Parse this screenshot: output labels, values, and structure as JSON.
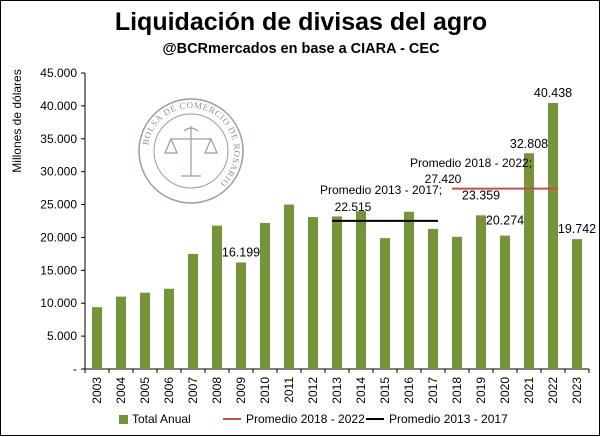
{
  "chart_data": {
    "type": "bar",
    "title": "Liquidación de divisas del agro",
    "subtitle": "@BCRmercados en base a CIARA - CEC",
    "ylabel": "Millones de dólares",
    "xlabel": "",
    "ylim": [
      0,
      45000
    ],
    "yticks": [
      "-",
      "5.000",
      "10.000",
      "15.000",
      "20.000",
      "25.000",
      "30.000",
      "35.000",
      "40.000",
      "45.000"
    ],
    "categories": [
      "2003",
      "2004",
      "2005",
      "2006",
      "2007",
      "2008",
      "2009",
      "2010",
      "2011",
      "2012",
      "2013",
      "2014",
      "2015",
      "2016",
      "2017",
      "2018",
      "2019",
      "2020",
      "2021",
      "2022",
      "2023"
    ],
    "series": [
      {
        "name": "Total Anual",
        "color": "#77933c",
        "values": [
          9400,
          11000,
          11600,
          12200,
          17500,
          21800,
          16199,
          22200,
          25000,
          23100,
          23200,
          24000,
          19900,
          23900,
          21300,
          20100,
          23359,
          20274,
          32808,
          40438,
          19742
        ]
      }
    ],
    "data_labels": [
      {
        "category": "2009",
        "text": "16.199"
      },
      {
        "category": "2019",
        "text": "23.359"
      },
      {
        "category": "2020",
        "text": "20.274"
      },
      {
        "category": "2021",
        "text": "32.808"
      },
      {
        "category": "2022",
        "text": "40.438"
      },
      {
        "category": "2023",
        "text": "19.742"
      }
    ],
    "averages": [
      {
        "name": "Promedio 2018 - 2022",
        "value": 27420,
        "from": "2018",
        "to": "2022",
        "color": "#c0504d",
        "label_line1": "Promedio 2018 - 2022;",
        "label_line2": "27.420"
      },
      {
        "name": "Promedio 2013 - 2017",
        "value": 22515,
        "from": "2013",
        "to": "2017",
        "color": "#000000",
        "label_line1": "Promedio 2013 - 2017;",
        "label_line2": "22.515"
      }
    ],
    "legend": {
      "position": "bottom",
      "entries": [
        "Total Anual",
        "Promedio 2018 - 2022",
        "Promedio 2013 - 2017"
      ]
    },
    "grid": false,
    "watermark": {
      "text": "BOLSA DE COMERCIO DE ROSARIO"
    }
  }
}
